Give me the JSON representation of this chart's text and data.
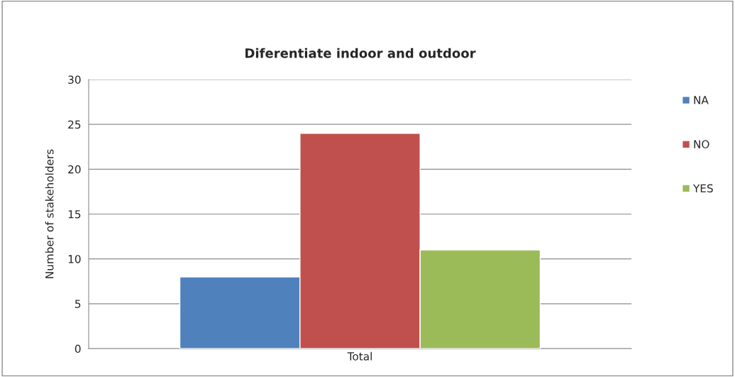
{
  "chart_data": {
    "type": "bar",
    "title": "Diferentiate indoor and outdoor",
    "ylabel": "Number of stakeholders",
    "categories": [
      "Total"
    ],
    "series": [
      {
        "name": "NA",
        "color": "#4f81bd",
        "values": [
          8
        ]
      },
      {
        "name": "NO",
        "color": "#c0504d",
        "values": [
          24
        ]
      },
      {
        "name": "YES",
        "color": "#9bbb59",
        "values": [
          11
        ]
      }
    ],
    "ylim": [
      0,
      30
    ],
    "yticks": [
      0,
      5,
      10,
      15,
      20,
      25,
      30
    ],
    "grid": "y",
    "legend": "right"
  }
}
